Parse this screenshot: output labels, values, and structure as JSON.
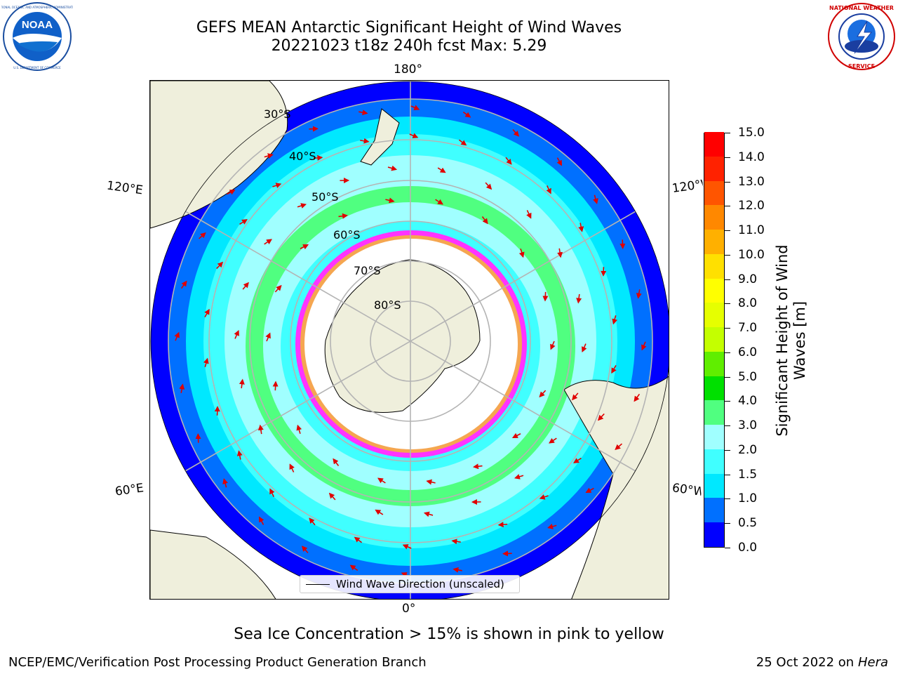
{
  "header": {
    "title_line1": "GEFS MEAN Antarctic Significant Height of Wind Waves",
    "title_line2": "20221023 t18z 240h fcst   Max: 5.29"
  },
  "logos": {
    "left": {
      "text": "NOAA",
      "ring_text": "NATIONAL OCEANIC AND ATMOSPHERIC ADMINISTRATION · U.S. DEPARTMENT OF COMMERCE"
    },
    "right": {
      "ring_text": "NATIONAL WEATHER SERVICE"
    }
  },
  "map": {
    "longitude_labels": {
      "top": "180°",
      "bottom": "0°",
      "upper_left": "120°E",
      "lower_left": "60°E",
      "upper_right": "120°W",
      "lower_right": "60°W"
    },
    "latitude_labels": [
      "30°S",
      "40°S",
      "50°S",
      "60°S",
      "70°S",
      "80°S"
    ],
    "legend": "Wind Wave Direction (unscaled)",
    "colors": {
      "land": "#efefdc",
      "ice": "#ffffff",
      "ice_edge": [
        "#ff33ff",
        "#f5a650",
        "#ffff00"
      ],
      "grid": "#b4b4b4",
      "arrow": "#e00000"
    }
  },
  "colorbar": {
    "title": "Significant Height of Wind Waves [m]",
    "ticks": [
      "0.0",
      "0.5",
      "1.0",
      "1.5",
      "2.0",
      "3.0",
      "4.0",
      "5.0",
      "6.0",
      "7.0",
      "8.0",
      "9.0",
      "10.0",
      "11.0",
      "12.0",
      "13.0",
      "14.0",
      "15.0"
    ],
    "colors": [
      "#0000ff",
      "#0070ff",
      "#00e8ff",
      "#40ffff",
      "#a0ffff",
      "#50ff80",
      "#00e000",
      "#60ee00",
      "#c4ff00",
      "#e6ff00",
      "#ffff00",
      "#ffe000",
      "#ffb000",
      "#ff8800",
      "#ff5500",
      "#ff2200",
      "#ff0000"
    ]
  },
  "notes": {
    "sea_ice": "Sea Ice Concentration > 15% is shown in pink to yellow"
  },
  "footer": {
    "left": "NCEP/EMC/Verification Post Processing Product Generation Branch",
    "right_prefix": "25 Oct 2022 on ",
    "right_host": "Hera"
  }
}
